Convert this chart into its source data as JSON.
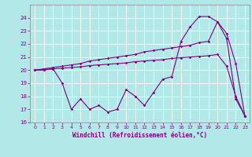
{
  "xlabel": "Windchill (Refroidissement éolien,°C)",
  "background_color": "#b2e8e8",
  "grid_color": "#ffffff",
  "line_color": "#800080",
  "x_values": [
    0,
    1,
    2,
    3,
    4,
    5,
    6,
    7,
    8,
    9,
    10,
    11,
    12,
    13,
    14,
    15,
    16,
    17,
    18,
    19,
    20,
    21,
    22,
    23
  ],
  "series1": [
    20.0,
    20.0,
    20.1,
    19.0,
    17.0,
    17.8,
    17.0,
    17.3,
    16.8,
    17.0,
    18.5,
    18.0,
    17.3,
    18.3,
    19.3,
    19.5,
    22.2,
    23.3,
    24.1,
    24.1,
    23.7,
    22.8,
    20.5,
    16.5
  ],
  "series2": [
    20.0,
    20.1,
    20.2,
    20.3,
    20.4,
    20.5,
    20.7,
    20.8,
    20.9,
    21.0,
    21.1,
    21.2,
    21.4,
    21.5,
    21.6,
    21.7,
    21.8,
    21.9,
    22.1,
    22.2,
    23.7,
    22.4,
    17.8,
    16.5
  ],
  "series3": [
    20.0,
    20.05,
    20.1,
    20.15,
    20.2,
    20.25,
    20.35,
    20.4,
    20.45,
    20.5,
    20.55,
    20.65,
    20.7,
    20.75,
    20.8,
    20.9,
    20.95,
    21.0,
    21.05,
    21.1,
    21.2,
    20.3,
    18.0,
    16.5
  ],
  "ylim": [
    16,
    25
  ],
  "xlim": [
    -0.5,
    23.5
  ],
  "yticks": [
    16,
    17,
    18,
    19,
    20,
    21,
    22,
    23,
    24
  ],
  "xticks": [
    0,
    1,
    2,
    3,
    4,
    5,
    6,
    7,
    8,
    9,
    10,
    11,
    12,
    13,
    14,
    15,
    16,
    17,
    18,
    19,
    20,
    21,
    22,
    23
  ]
}
